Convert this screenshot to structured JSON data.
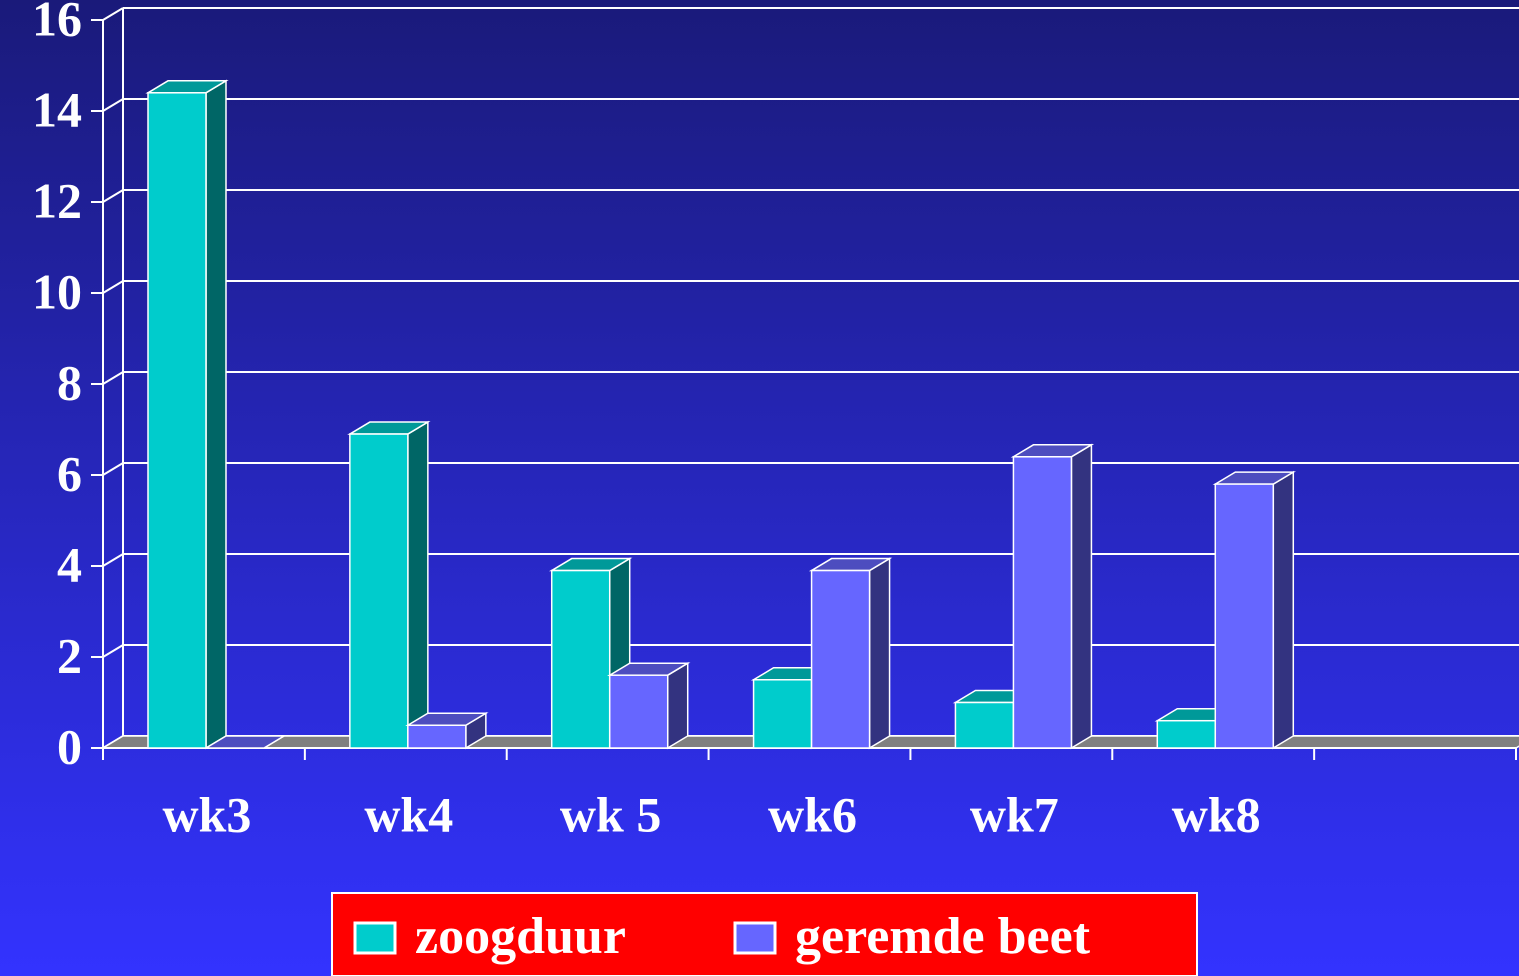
{
  "chart_data": {
    "type": "bar3d",
    "categories": [
      "wk3",
      "wk4",
      "wk 5",
      "wk6",
      "wk7",
      "wk8",
      null
    ],
    "series": [
      {
        "name": "zoogduur",
        "color": "#00cccc",
        "values": [
          14.4,
          6.9,
          3.9,
          1.5,
          1.0,
          0.6,
          null
        ]
      },
      {
        "name": "geremde beet",
        "color": "#6666ff",
        "values": [
          0,
          0.5,
          1.6,
          3.9,
          6.4,
          5.8,
          null
        ]
      }
    ],
    "ylim": [
      0,
      16
    ],
    "yticks": [
      0,
      2,
      4,
      6,
      8,
      10,
      12,
      14,
      16
    ],
    "grid": true,
    "legend": "bottom"
  }
}
